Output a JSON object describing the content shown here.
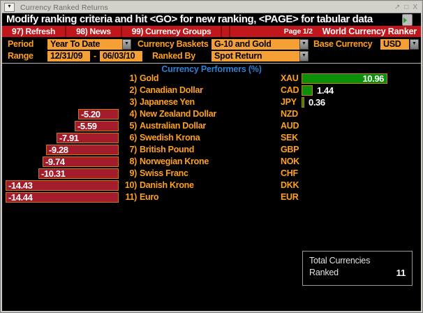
{
  "window": {
    "title": "Currency Ranked Returns",
    "menu_button": "▼",
    "controls": {
      "minimize": "↗",
      "maximize": "□",
      "close": "X"
    }
  },
  "message_bar": {
    "text": "Modify ranking criteria and hit <GO> for new ranking, <PAGE> for tabular data"
  },
  "toolbar": {
    "buttons": [
      {
        "label": "97) Refresh"
      },
      {
        "label": "98) News"
      },
      {
        "label": "99) Currency Groups"
      }
    ],
    "page_indicator": "Page 1/2",
    "app_title": "World Currency Ranker"
  },
  "criteria": {
    "period": {
      "label": "Period",
      "value": "Year To Date"
    },
    "currency_baskets": {
      "label": "Currency Baskets",
      "value": "G-10 and Gold"
    },
    "base_currency": {
      "label": "Base Currency",
      "value": "USD"
    },
    "range": {
      "label": "Range",
      "from": "12/31/09",
      "separator": "-",
      "to": "06/03/10"
    },
    "ranked_by": {
      "label": "Ranked By",
      "value": "Spot Return"
    }
  },
  "chart_data": {
    "type": "bar",
    "orientation": "horizontal",
    "title": "Currency Performers  (%)",
    "unit": "%",
    "positive_color": "#0b8f0b",
    "negative_color": "#a41b2b",
    "bar_border_color": "#c07a28",
    "rows": [
      {
        "rank": "1)",
        "name": "Gold",
        "code": "XAU",
        "value": 10.96
      },
      {
        "rank": "2)",
        "name": "Canadian Dollar",
        "code": "CAD",
        "value": 1.44
      },
      {
        "rank": "3)",
        "name": "Japanese Yen",
        "code": "JPY",
        "value": 0.36
      },
      {
        "rank": "4)",
        "name": "New Zealand Dollar",
        "code": "NZD",
        "value": -5.2
      },
      {
        "rank": "5)",
        "name": "Australian Dollar",
        "code": "AUD",
        "value": -5.59
      },
      {
        "rank": "6)",
        "name": "Swedish Krona",
        "code": "SEK",
        "value": -7.91
      },
      {
        "rank": "7)",
        "name": "British Pound",
        "code": "GBP",
        "value": -9.28
      },
      {
        "rank": "8)",
        "name": "Norwegian Krone",
        "code": "NOK",
        "value": -9.74
      },
      {
        "rank": "9)",
        "name": "Swiss Franc",
        "code": "CHF",
        "value": -10.31
      },
      {
        "rank": "10)",
        "name": "Danish Krone",
        "code": "DKK",
        "value": -14.43
      },
      {
        "rank": "11)",
        "name": "Euro",
        "code": "EUR",
        "value": -14.44
      }
    ]
  },
  "summary_box": {
    "line1": "Total Currencies",
    "line2": "Ranked",
    "value": "11"
  },
  "colors": {
    "toolbar_red": "#c0161c",
    "field_orange": "#f5a035",
    "label_orange": "#ffa01e",
    "heading_blue": "#2d80d5"
  }
}
